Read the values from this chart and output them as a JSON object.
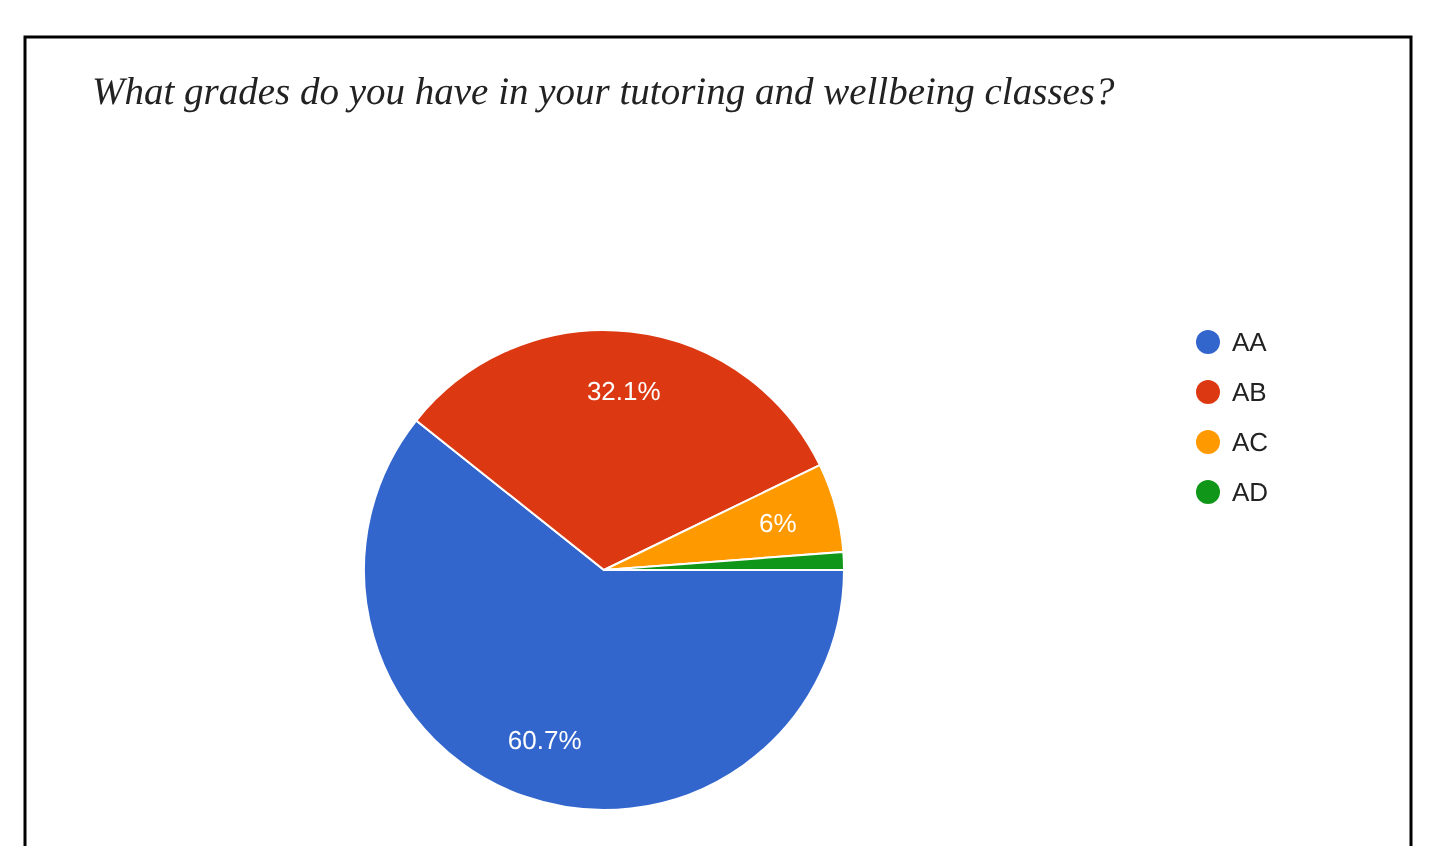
{
  "chart_data": {
    "type": "pie",
    "title": "What grades do you have in your tutoring and wellbeing classes?",
    "categories": [
      "AA",
      "AB",
      "AC",
      "AD"
    ],
    "values": [
      60.7,
      32.1,
      6,
      1.2
    ],
    "value_labels": [
      "60.7%",
      "32.1%",
      "6%",
      null
    ],
    "colors": [
      "#3366cc",
      "#dc3912",
      "#ff9900",
      "#109618"
    ],
    "legend": "right"
  }
}
